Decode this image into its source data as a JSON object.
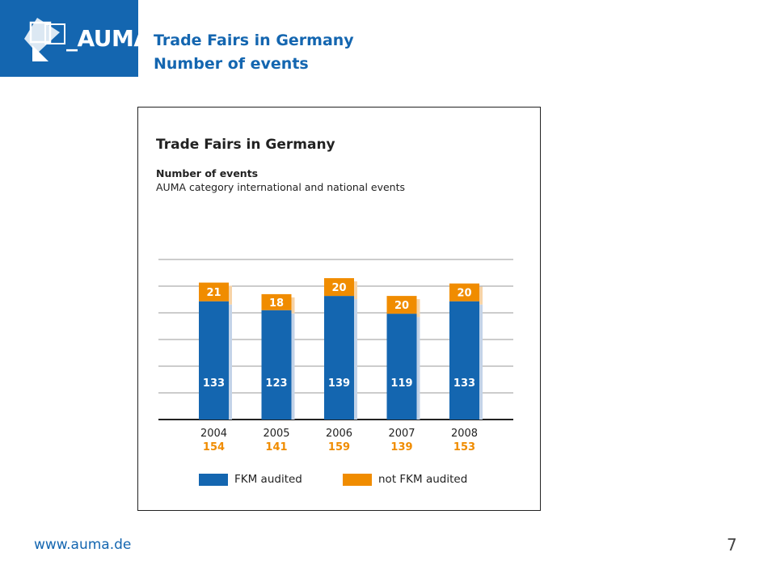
{
  "header": {
    "logo_text": "_AUMA",
    "title_line1": "Trade Fairs in Germany",
    "title_line2": "Number of events"
  },
  "chart_data": {
    "type": "bar",
    "stacked": true,
    "title": "Trade Fairs in Germany",
    "subtitle": "Number of events",
    "subtitle2": "AUMA category international and national events",
    "categories": [
      "2004",
      "2005",
      "2006",
      "2007",
      "2008"
    ],
    "totals": [
      154,
      141,
      159,
      139,
      153
    ],
    "series": [
      {
        "name": "FKM audited",
        "values": [
          133,
          123,
          139,
          119,
          133
        ],
        "color": "#1466b0"
      },
      {
        "name": "not FKM audited",
        "values": [
          21,
          18,
          20,
          20,
          20
        ],
        "color": "#f08c00"
      }
    ],
    "ylim": [
      0,
      180
    ],
    "grid": true,
    "legend": "bottom"
  },
  "colors": {
    "brand_blue": "#1466b0",
    "accent_orange": "#f08c00",
    "shadow": "#c3d3e8"
  },
  "footer": {
    "url": "www.auma.de",
    "page_number": "7"
  }
}
